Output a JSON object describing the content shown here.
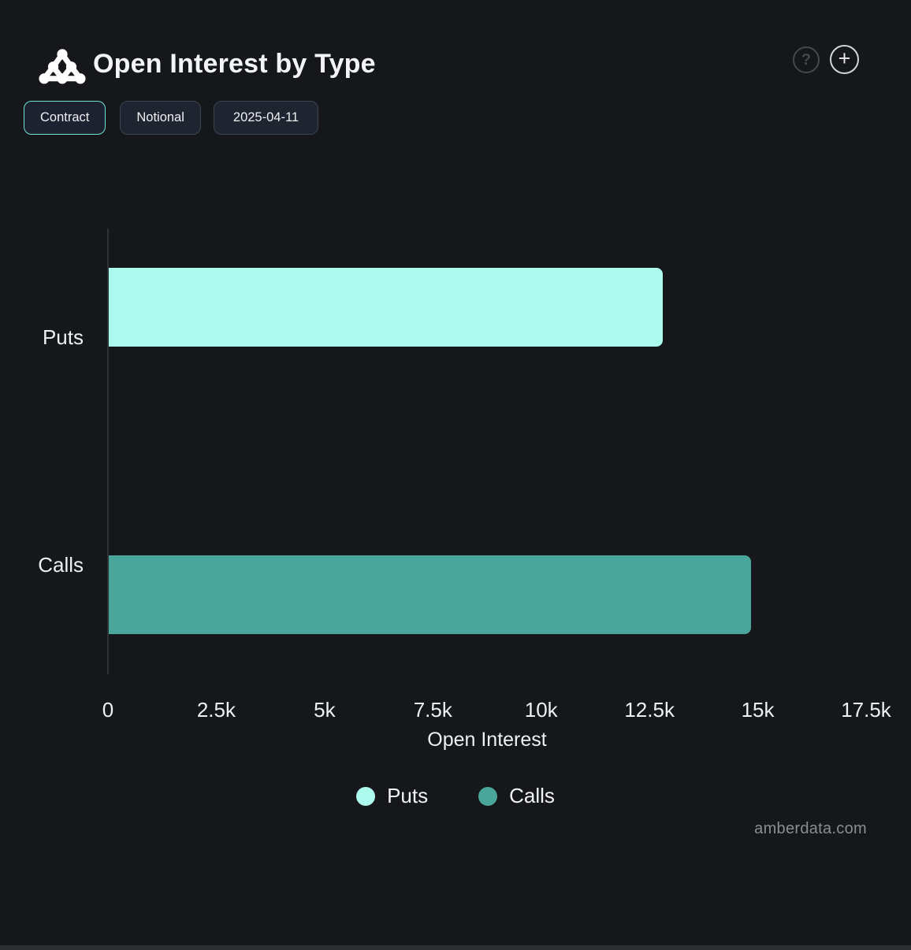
{
  "header": {
    "title": "Open Interest by Type",
    "help_icon_glyph": "?",
    "add_icon_glyph": "+"
  },
  "toolbar": {
    "active_border_color": "#6fe3d4",
    "buttons": [
      {
        "label": "Contract",
        "active": true
      },
      {
        "label": "Notional",
        "active": false
      },
      {
        "label": "2025-04-11",
        "active": false
      }
    ]
  },
  "chart_data": {
    "type": "bar",
    "orientation": "horizontal",
    "title": "Open Interest by Type",
    "categories": [
      "Puts",
      "Calls"
    ],
    "series": [
      {
        "name": "Puts",
        "color": "#acf9ee",
        "values": [
          12800,
          0
        ]
      },
      {
        "name": "Calls",
        "color": "#4aa59b",
        "values": [
          0,
          14850
        ]
      }
    ],
    "xlabel": "Open Interest",
    "xlim": [
      0,
      17500
    ],
    "x_ticks": [
      {
        "value": 0,
        "label": "0"
      },
      {
        "value": 2500,
        "label": "2.5k"
      },
      {
        "value": 5000,
        "label": "5k"
      },
      {
        "value": 7500,
        "label": "7.5k"
      },
      {
        "value": 10000,
        "label": "10k"
      },
      {
        "value": 12500,
        "label": "12.5k"
      },
      {
        "value": 15000,
        "label": "15k"
      },
      {
        "value": 17500,
        "label": "17.5k"
      }
    ],
    "grid": false,
    "legend_position": "bottom",
    "legend": [
      {
        "label": "Puts",
        "color": "#acf9ee"
      },
      {
        "label": "Calls",
        "color": "#4aa59b"
      }
    ]
  },
  "watermark": "amberdata.com"
}
